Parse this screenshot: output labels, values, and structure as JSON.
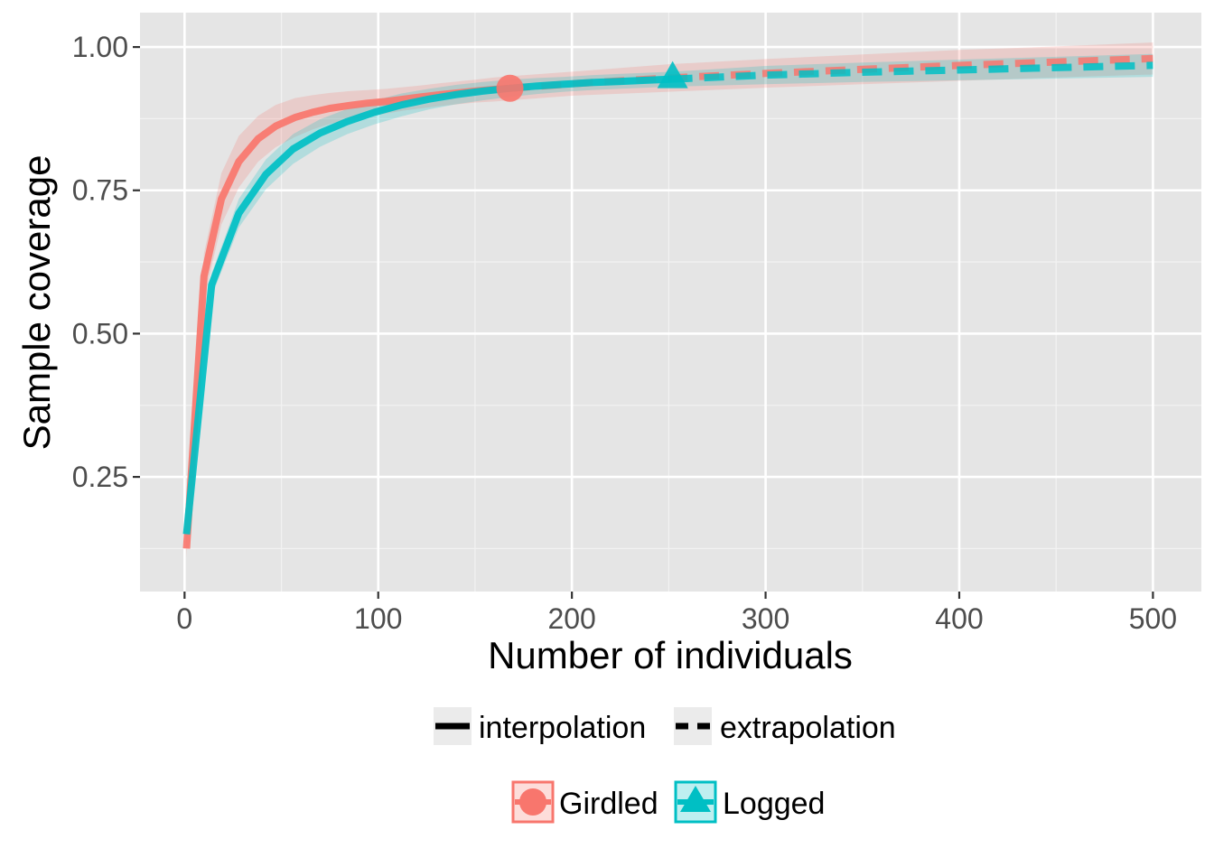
{
  "chart_data": {
    "type": "line",
    "xlabel": "Number of individuals",
    "ylabel": "Sample coverage",
    "xlim": [
      -23,
      525
    ],
    "ylim": [
      0.05,
      1.06
    ],
    "x_ticks": [
      0,
      100,
      200,
      300,
      400,
      500
    ],
    "x_tick_labels": [
      "0",
      "100",
      "200",
      "300",
      "400",
      "500"
    ],
    "y_ticks": [
      0.25,
      0.5,
      0.75,
      1.0
    ],
    "y_tick_labels": [
      "0.25",
      "0.50",
      "0.75",
      "1.00"
    ],
    "grid": true,
    "legend_placement": "bottom",
    "linetype_legend": [
      {
        "label": "interpolation",
        "style": "solid"
      },
      {
        "label": "extrapolation",
        "style": "dashed"
      }
    ],
    "series": [
      {
        "name": "Girdled",
        "color": "#F8766D",
        "marker": "circle",
        "reference_point": {
          "x": 168,
          "y": 0.928
        },
        "interpolated": {
          "x": [
            1,
            10,
            19,
            28,
            38,
            47,
            57,
            66,
            75,
            85,
            94,
            104,
            113,
            122,
            132,
            141,
            150,
            160,
            168
          ],
          "y": [
            0.125,
            0.6,
            0.735,
            0.8,
            0.84,
            0.862,
            0.877,
            0.886,
            0.893,
            0.898,
            0.902,
            0.905,
            0.909,
            0.913,
            0.917,
            0.92,
            0.923,
            0.926,
            0.928
          ]
        },
        "extrapolated": {
          "x": [
            168,
            200,
            250,
            300,
            350,
            400,
            450,
            500
          ],
          "y": [
            0.928,
            0.936,
            0.946,
            0.954,
            0.961,
            0.968,
            0.974,
            0.98
          ]
        },
        "ci_lower": [
          0.11,
          0.56,
          0.69,
          0.755,
          0.8,
          0.825,
          0.843,
          0.856,
          0.866,
          0.873,
          0.879,
          0.884,
          0.889,
          0.893,
          0.897,
          0.9,
          0.903,
          0.905,
          0.907,
          0.915,
          0.922,
          0.929,
          0.935,
          0.941,
          0.947,
          0.952
        ],
        "ci_upper": [
          0.14,
          0.64,
          0.78,
          0.845,
          0.88,
          0.899,
          0.911,
          0.916,
          0.92,
          0.923,
          0.925,
          0.927,
          0.93,
          0.933,
          0.937,
          0.94,
          0.943,
          0.947,
          0.949,
          0.957,
          0.97,
          0.979,
          0.987,
          0.995,
          1.001,
          1.008
        ]
      },
      {
        "name": "Logged",
        "color": "#00BFC4",
        "marker": "triangle",
        "reference_point": {
          "x": 252,
          "y": 0.944
        },
        "interpolated": {
          "x": [
            1,
            14,
            28,
            42,
            56,
            70,
            84,
            98,
            112,
            126,
            140,
            154,
            168,
            182,
            196,
            210,
            224,
            238,
            252
          ],
          "y": [
            0.15,
            0.585,
            0.71,
            0.778,
            0.822,
            0.85,
            0.87,
            0.886,
            0.899,
            0.909,
            0.917,
            0.923,
            0.928,
            0.932,
            0.935,
            0.938,
            0.94,
            0.942,
            0.944
          ]
        },
        "extrapolated": {
          "x": [
            252,
            300,
            350,
            400,
            450,
            500
          ],
          "y": [
            0.944,
            0.951,
            0.956,
            0.96,
            0.964,
            0.968
          ]
        },
        "ci_lower": [
          0.135,
          0.565,
          0.685,
          0.752,
          0.796,
          0.826,
          0.848,
          0.865,
          0.879,
          0.891,
          0.9,
          0.907,
          0.913,
          0.918,
          0.922,
          0.925,
          0.927,
          0.929,
          0.931,
          0.935,
          0.939,
          0.942,
          0.945,
          0.948
        ],
        "ci_upper": [
          0.165,
          0.605,
          0.735,
          0.804,
          0.848,
          0.874,
          0.892,
          0.907,
          0.919,
          0.927,
          0.934,
          0.939,
          0.943,
          0.946,
          0.948,
          0.951,
          0.953,
          0.955,
          0.957,
          0.967,
          0.973,
          0.978,
          0.983,
          0.988
        ]
      }
    ]
  }
}
